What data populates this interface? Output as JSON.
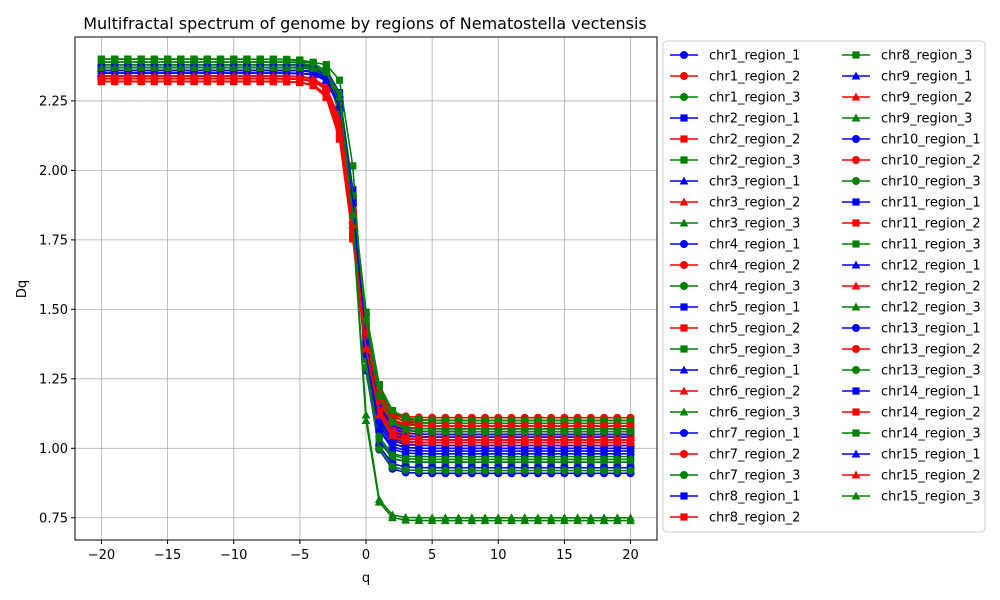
{
  "chart_data": {
    "type": "line",
    "title": "Multifractal spectrum of genome by regions of Nematostella vectensis",
    "xlabel": "q",
    "ylabel": "Dq",
    "xlim": [
      -22,
      22
    ],
    "ylim": [
      0.67,
      2.48
    ],
    "xticks": [
      -20,
      -15,
      -10,
      -5,
      0,
      5,
      10,
      15,
      20
    ],
    "yticks": [
      0.75,
      1.0,
      1.25,
      1.5,
      1.75,
      2.0,
      2.25
    ],
    "grid": true,
    "legend_position": "outside-right",
    "legend_columns": 2,
    "q": [
      -20,
      -19,
      -18,
      -17,
      -16,
      -15,
      -14,
      -13,
      -12,
      -11,
      -10,
      -9,
      -8,
      -7,
      -6,
      -5,
      -4,
      -3,
      -2,
      -1,
      0,
      1,
      2,
      3,
      4,
      5,
      6,
      7,
      8,
      9,
      10,
      11,
      12,
      13,
      14,
      15,
      16,
      17,
      18,
      19,
      20
    ],
    "colors": {
      "blue": "#0000ff",
      "red": "#ff0000",
      "green": "#008000"
    },
    "series": [
      {
        "name": "chr1_region_1",
        "color": "blue",
        "marker": "o",
        "params": {
          "dmin": 2.37,
          "dmax": 0.91,
          "k": 0.85
        }
      },
      {
        "name": "chr1_region_2",
        "color": "red",
        "marker": "o",
        "params": {
          "dmin": 2.33,
          "dmax": 1.11,
          "k": 0.75
        }
      },
      {
        "name": "chr1_region_3",
        "color": "green",
        "marker": "o",
        "params": {
          "dmin": 2.36,
          "dmax": 1.05,
          "k": 0.8
        }
      },
      {
        "name": "chr2_region_1",
        "color": "blue",
        "marker": "s",
        "params": {
          "dmin": 2.38,
          "dmax": 0.95,
          "k": 0.9
        }
      },
      {
        "name": "chr2_region_2",
        "color": "red",
        "marker": "s",
        "params": {
          "dmin": 2.32,
          "dmax": 1.02,
          "k": 0.7
        }
      },
      {
        "name": "chr2_region_3",
        "color": "green",
        "marker": "s",
        "params": {
          "dmin": 2.4,
          "dmax": 1.08,
          "k": 0.65
        }
      },
      {
        "name": "chr3_region_1",
        "color": "blue",
        "marker": "^",
        "params": {
          "dmin": 2.35,
          "dmax": 1.0,
          "k": 0.85
        }
      },
      {
        "name": "chr3_region_2",
        "color": "red",
        "marker": "^",
        "params": {
          "dmin": 2.34,
          "dmax": 1.05,
          "k": 0.72
        }
      },
      {
        "name": "chr3_region_3",
        "color": "green",
        "marker": "^",
        "params": {
          "dmin": 2.36,
          "dmax": 0.74,
          "k": 0.95
        }
      },
      {
        "name": "chr4_region_1",
        "color": "blue",
        "marker": "o",
        "params": {
          "dmin": 2.36,
          "dmax": 1.05,
          "k": 0.8
        }
      },
      {
        "name": "chr4_region_2",
        "color": "red",
        "marker": "o",
        "params": {
          "dmin": 2.33,
          "dmax": 1.09,
          "k": 0.74
        }
      },
      {
        "name": "chr4_region_3",
        "color": "green",
        "marker": "o",
        "params": {
          "dmin": 2.38,
          "dmax": 1.1,
          "k": 0.7
        }
      },
      {
        "name": "chr5_region_1",
        "color": "blue",
        "marker": "s",
        "params": {
          "dmin": 2.36,
          "dmax": 1.03,
          "k": 0.82
        }
      },
      {
        "name": "chr5_region_2",
        "color": "red",
        "marker": "s",
        "params": {
          "dmin": 2.32,
          "dmax": 1.01,
          "k": 0.7
        }
      },
      {
        "name": "chr5_region_3",
        "color": "green",
        "marker": "s",
        "params": {
          "dmin": 2.39,
          "dmax": 0.97,
          "k": 1.0
        }
      },
      {
        "name": "chr6_region_1",
        "color": "blue",
        "marker": "^",
        "params": {
          "dmin": 2.35,
          "dmax": 1.07,
          "k": 0.8
        }
      },
      {
        "name": "chr6_region_2",
        "color": "red",
        "marker": "^",
        "params": {
          "dmin": 2.34,
          "dmax": 1.04,
          "k": 0.72
        }
      },
      {
        "name": "chr6_region_3",
        "color": "green",
        "marker": "^",
        "params": {
          "dmin": 2.37,
          "dmax": 0.95,
          "k": 0.92
        }
      },
      {
        "name": "chr7_region_1",
        "color": "blue",
        "marker": "o",
        "params": {
          "dmin": 2.36,
          "dmax": 0.93,
          "k": 0.88
        }
      },
      {
        "name": "chr7_region_2",
        "color": "red",
        "marker": "o",
        "params": {
          "dmin": 2.33,
          "dmax": 1.07,
          "k": 0.75
        }
      },
      {
        "name": "chr7_region_3",
        "color": "green",
        "marker": "o",
        "params": {
          "dmin": 2.37,
          "dmax": 0.92,
          "k": 0.9
        }
      },
      {
        "name": "chr8_region_1",
        "color": "blue",
        "marker": "s",
        "params": {
          "dmin": 2.37,
          "dmax": 0.98,
          "k": 0.85
        }
      },
      {
        "name": "chr8_region_2",
        "color": "red",
        "marker": "s",
        "params": {
          "dmin": 2.32,
          "dmax": 1.06,
          "k": 0.72
        }
      },
      {
        "name": "chr8_region_3",
        "color": "green",
        "marker": "s",
        "params": {
          "dmin": 2.4,
          "dmax": 1.09,
          "k": 0.66
        }
      },
      {
        "name": "chr9_region_1",
        "color": "blue",
        "marker": "^",
        "params": {
          "dmin": 2.35,
          "dmax": 1.02,
          "k": 0.83
        }
      },
      {
        "name": "chr9_region_2",
        "color": "red",
        "marker": "^",
        "params": {
          "dmin": 2.34,
          "dmax": 1.03,
          "k": 0.73
        }
      },
      {
        "name": "chr9_region_3",
        "color": "green",
        "marker": "^",
        "params": {
          "dmin": 2.37,
          "dmax": 1.0,
          "k": 0.85
        }
      },
      {
        "name": "chr10_region_1",
        "color": "blue",
        "marker": "o",
        "params": {
          "dmin": 2.36,
          "dmax": 1.06,
          "k": 0.8
        }
      },
      {
        "name": "chr10_region_2",
        "color": "red",
        "marker": "o",
        "params": {
          "dmin": 2.33,
          "dmax": 1.1,
          "k": 0.74
        }
      },
      {
        "name": "chr10_region_3",
        "color": "green",
        "marker": "o",
        "params": {
          "dmin": 2.38,
          "dmax": 1.07,
          "k": 0.72
        }
      },
      {
        "name": "chr11_region_1",
        "color": "blue",
        "marker": "s",
        "params": {
          "dmin": 2.37,
          "dmax": 1.04,
          "k": 0.82
        }
      },
      {
        "name": "chr11_region_2",
        "color": "red",
        "marker": "s",
        "params": {
          "dmin": 2.32,
          "dmax": 1.04,
          "k": 0.71
        }
      },
      {
        "name": "chr11_region_3",
        "color": "green",
        "marker": "s",
        "params": {
          "dmin": 2.39,
          "dmax": 1.1,
          "k": 0.68
        }
      },
      {
        "name": "chr12_region_1",
        "color": "blue",
        "marker": "^",
        "params": {
          "dmin": 2.35,
          "dmax": 1.04,
          "k": 0.82
        }
      },
      {
        "name": "chr12_region_2",
        "color": "red",
        "marker": "^",
        "params": {
          "dmin": 2.34,
          "dmax": 1.08,
          "k": 0.74
        }
      },
      {
        "name": "chr12_region_3",
        "color": "green",
        "marker": "^",
        "params": {
          "dmin": 2.37,
          "dmax": 1.02,
          "k": 0.8
        }
      },
      {
        "name": "chr13_region_1",
        "color": "blue",
        "marker": "o",
        "params": {
          "dmin": 2.36,
          "dmax": 1.0,
          "k": 0.84
        }
      },
      {
        "name": "chr13_region_2",
        "color": "red",
        "marker": "o",
        "params": {
          "dmin": 2.33,
          "dmax": 1.08,
          "k": 0.75
        }
      },
      {
        "name": "chr13_region_3",
        "color": "green",
        "marker": "o",
        "params": {
          "dmin": 2.37,
          "dmax": 0.96,
          "k": 0.88
        }
      },
      {
        "name": "chr14_region_1",
        "color": "blue",
        "marker": "s",
        "params": {
          "dmin": 2.37,
          "dmax": 1.01,
          "k": 0.84
        }
      },
      {
        "name": "chr14_region_2",
        "color": "red",
        "marker": "s",
        "params": {
          "dmin": 2.32,
          "dmax": 1.03,
          "k": 0.7
        }
      },
      {
        "name": "chr14_region_3",
        "color": "green",
        "marker": "s",
        "params": {
          "dmin": 2.4,
          "dmax": 1.06,
          "k": 0.7
        }
      },
      {
        "name": "chr15_region_1",
        "color": "blue",
        "marker": "^",
        "params": {
          "dmin": 2.35,
          "dmax": 0.99,
          "k": 0.86
        }
      },
      {
        "name": "chr15_region_2",
        "color": "red",
        "marker": "^",
        "params": {
          "dmin": 2.34,
          "dmax": 1.02,
          "k": 0.72
        }
      },
      {
        "name": "chr15_region_3",
        "color": "green",
        "marker": "^",
        "params": {
          "dmin": 2.37,
          "dmax": 0.75,
          "k": 0.97
        }
      }
    ]
  }
}
